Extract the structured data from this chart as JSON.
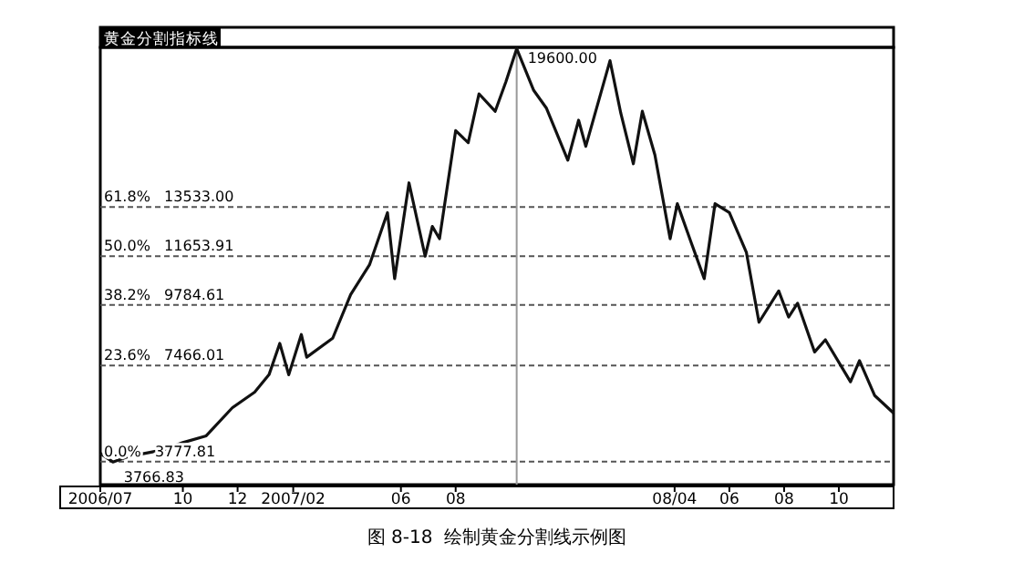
{
  "chart_data": {
    "type": "line",
    "title": "黄金分割指标线",
    "x": [
      "2006-07-01",
      "2006-07-15",
      "2006-08-01",
      "2006-08-20",
      "2006-09-10",
      "2006-10-01",
      "2006-10-27",
      "2006-11-25",
      "2006-12-20",
      "2007-01-05",
      "2007-01-17",
      "2007-01-27",
      "2007-02-10",
      "2007-02-16",
      "2007-03-17",
      "2007-04-06",
      "2007-04-27",
      "2007-05-17",
      "2007-05-25",
      "2007-06-10",
      "2007-06-28",
      "2007-07-06",
      "2007-07-14",
      "2007-08-01",
      "2007-08-15",
      "2007-08-27",
      "2007-09-14",
      "2007-09-26",
      "2007-10-08",
      "2007-10-27",
      "2007-11-10",
      "2007-12-04",
      "2007-12-16",
      "2007-12-24",
      "2008-01-20",
      "2008-02-01",
      "2008-02-15",
      "2008-02-25",
      "2008-03-10",
      "2008-03-27",
      "2008-04-04",
      "2008-04-20",
      "2008-05-04",
      "2008-05-16",
      "2008-06-01",
      "2008-06-20",
      "2008-07-04",
      "2008-07-26",
      "2008-08-06",
      "2008-08-16",
      "2008-09-04",
      "2008-09-16",
      "2008-10-14",
      "2008-10-24",
      "2008-11-10",
      "2008-12-01"
    ],
    "series": [
      {
        "color": "#111111",
        "values": [
          4100,
          3766.83,
          3970,
          4100,
          4240,
          4510,
          4770,
          5840,
          6440,
          7110,
          8310,
          7110,
          8650,
          7780,
          8510,
          10180,
          11320,
          13320,
          10790,
          14460,
          11650,
          12790,
          12320,
          16460,
          16000,
          17870,
          17200,
          18330,
          19600,
          18000,
          17330,
          15330,
          16860,
          15860,
          19140,
          17130,
          15190,
          17200,
          15530,
          12320,
          13660,
          12120,
          10790,
          13660,
          13320,
          11790,
          9120,
          10320,
          9320,
          9850,
          7980,
          8450,
          6840,
          7650,
          6310,
          5640
        ]
      }
    ],
    "xlim": [
      "2006-07-01",
      "2008-12-01"
    ],
    "ylim": [
      2900,
      19650
    ],
    "xticks": [
      {
        "value": "2006-07-01",
        "label": "2006/07"
      },
      {
        "value": "2006-10-01",
        "label": "10"
      },
      {
        "value": "2006-12-01",
        "label": "12"
      },
      {
        "value": "2007-02-01",
        "label": "2007/02"
      },
      {
        "value": "2007-06-01",
        "label": "06"
      },
      {
        "value": "2007-08-01",
        "label": "08"
      },
      {
        "value": "2008-04-01",
        "label": "08/04"
      },
      {
        "value": "2008-06-01",
        "label": "06"
      },
      {
        "value": "2008-08-01",
        "label": "08"
      },
      {
        "value": "2008-10-01",
        "label": "10"
      }
    ],
    "tick_labels": "x",
    "grid": false,
    "line_style": "solid",
    "ref_lines": [
      {
        "axis": "y",
        "value": 13533.0,
        "label": "61.8%   13533.00",
        "line_style": "dashed",
        "color": "#555555"
      },
      {
        "axis": "y",
        "value": 11653.91,
        "label": "50.0%   11653.91",
        "line_style": "dashed",
        "color": "#555555"
      },
      {
        "axis": "y",
        "value": 9784.61,
        "label": "38.2%   9784.61",
        "line_style": "dashed",
        "color": "#555555"
      },
      {
        "axis": "y",
        "value": 7466.01,
        "label": "23.6%   7466.01",
        "line_style": "dashed",
        "color": "#555555"
      },
      {
        "axis": "y",
        "value": 3777.81,
        "label": "0.0%   3777.81",
        "line_style": "dashed",
        "color": "#555555"
      },
      {
        "axis": "x",
        "value": "2007-10-08",
        "line_style": "solid",
        "color": "#999999"
      }
    ],
    "annotations": [
      {
        "text": "19600.00",
        "x": "2007-10-08",
        "y": 19600
      },
      {
        "text": "3766.83",
        "x": "2006-07-15",
        "y": 3766.83
      },
      "图 8-18  绘制黄金分割线示例图"
    ]
  }
}
